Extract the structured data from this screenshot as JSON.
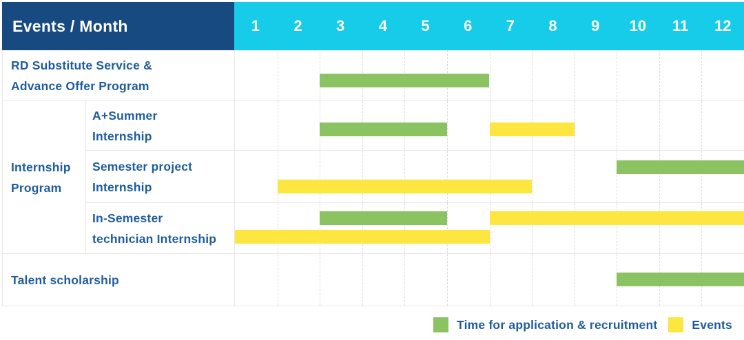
{
  "title_cell": "Events / Month",
  "months": [
    "1",
    "2",
    "3",
    "4",
    "5",
    "6",
    "7",
    "8",
    "9",
    "10",
    "11",
    "12"
  ],
  "colors": {
    "header_navy": "#164a80",
    "header_cyan": "#16cce9",
    "application_green": "#8bc363",
    "event_yellow": "#fce63f",
    "label_blue": "#1e5c9f"
  },
  "row_labels": {
    "row1_line1": "RD Substitute Service &",
    "row1_line2": "Advance Offer Program",
    "group_line1": "Internship",
    "group_line2": "Program",
    "sub1_line1": "A+Summer",
    "sub1_line2": "Internship",
    "sub2_line1": "Semester project",
    "sub2_line2": "Internship",
    "sub3_line1": "In-Semester",
    "sub3_line2": "technician Internship",
    "row5": "Talent scholarship"
  },
  "legend": {
    "items": [
      {
        "type": "application",
        "label": "Time for application & recruitment"
      },
      {
        "type": "event",
        "label": "Events"
      }
    ]
  },
  "chart_data": {
    "type": "table",
    "subtype": "gantt",
    "title": "Events / Month",
    "x": {
      "unit": "month",
      "ticks": [
        1,
        2,
        3,
        4,
        5,
        6,
        7,
        8,
        9,
        10,
        11,
        12
      ]
    },
    "legend": [
      {
        "color": "#8bc363",
        "label": "Time for application & recruitment"
      },
      {
        "color": "#fce63f",
        "label": "Events"
      }
    ],
    "rows": [
      {
        "group": "",
        "label": "RD Substitute Service & Advance Offer Program",
        "bars": [
          {
            "kind": "application",
            "start": 3,
            "end": 6,
            "line": 0
          }
        ]
      },
      {
        "group": "Internship Program",
        "label": "A+Summer Internship",
        "bars": [
          {
            "kind": "application",
            "start": 3,
            "end": 5,
            "line": 0
          },
          {
            "kind": "event",
            "start": 7,
            "end": 8,
            "line": 0
          }
        ]
      },
      {
        "group": "Internship Program",
        "label": "Semester project Internship",
        "bars": [
          {
            "kind": "application",
            "start": 10,
            "end": 12,
            "line": 0
          },
          {
            "kind": "event",
            "start": 2,
            "end": 7,
            "line": 1
          }
        ]
      },
      {
        "group": "Internship Program",
        "label": "In-Semester technician Internship",
        "bars": [
          {
            "kind": "application",
            "start": 3,
            "end": 5,
            "line": 0
          },
          {
            "kind": "event",
            "start": 7,
            "end": 12,
            "line": 0
          },
          {
            "kind": "event",
            "start": 1,
            "end": 6,
            "line": 1
          }
        ]
      },
      {
        "group": "",
        "label": "Talent scholarship",
        "bars": [
          {
            "kind": "application",
            "start": 10,
            "end": 12,
            "line": 0
          }
        ]
      }
    ]
  }
}
